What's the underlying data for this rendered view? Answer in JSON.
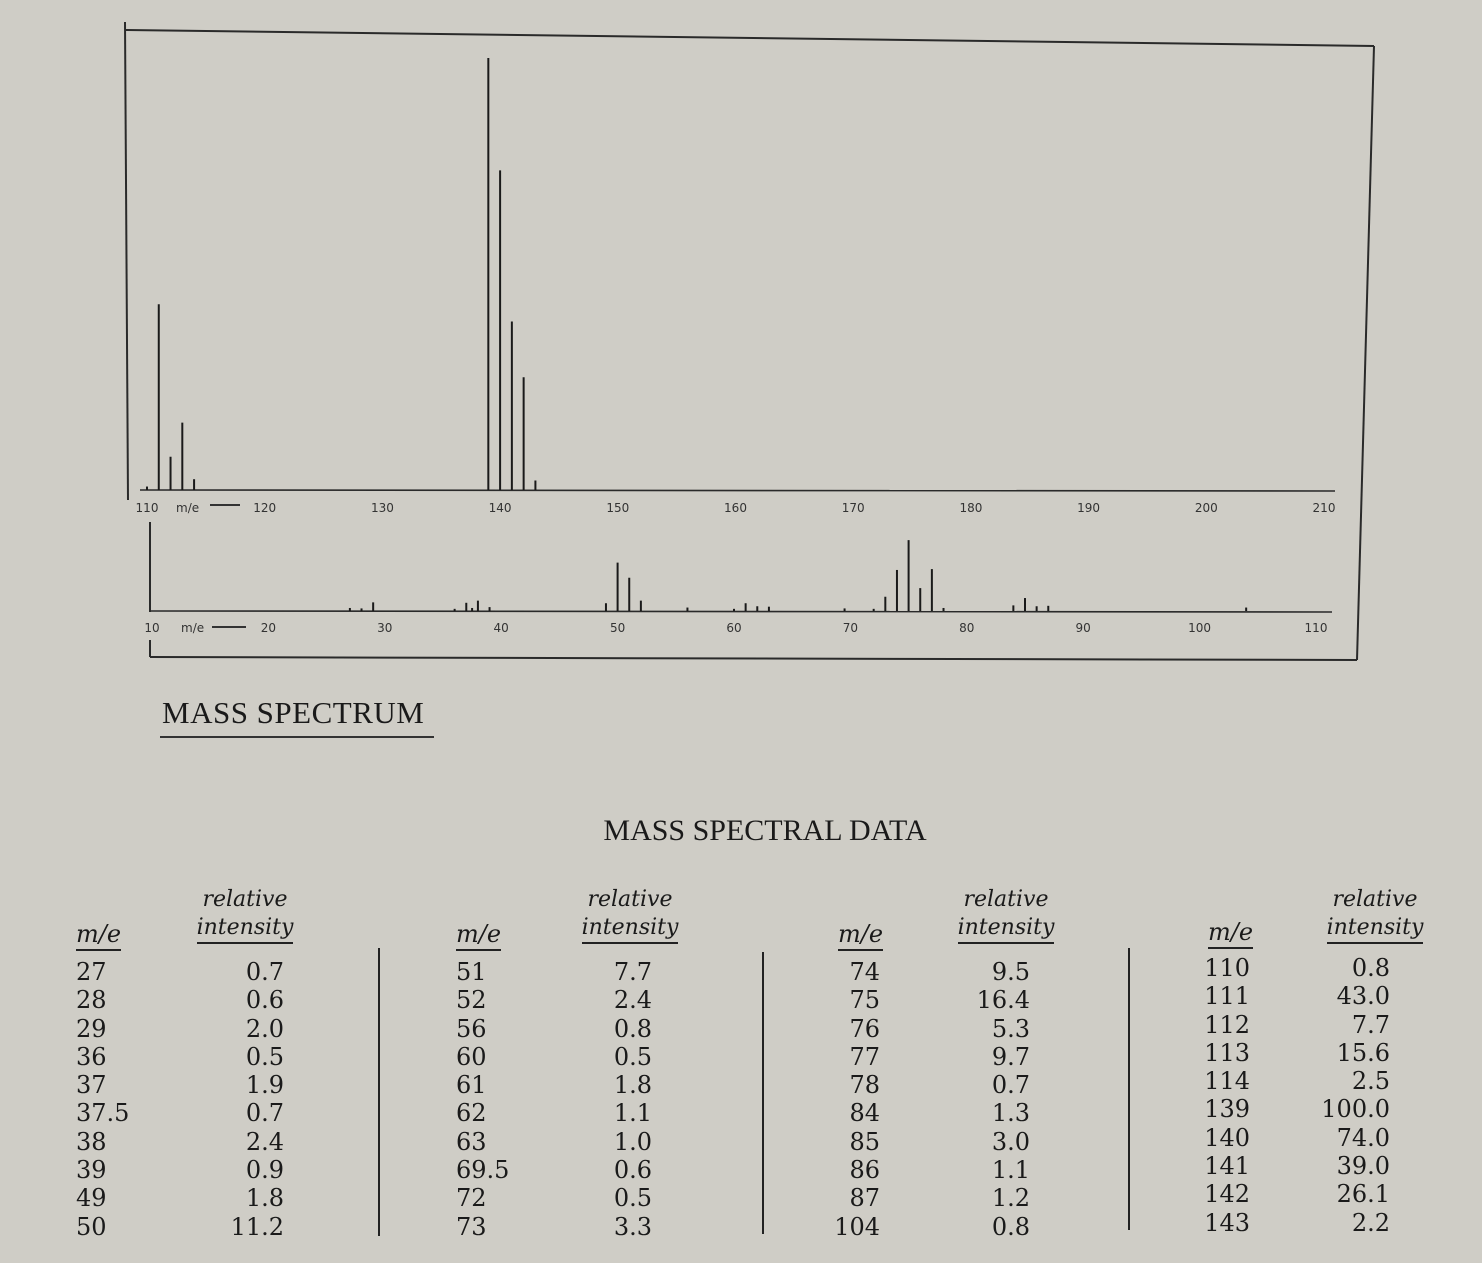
{
  "chart_data": [
    {
      "type": "bar",
      "title": "",
      "xlabel": "m/e",
      "xlim": [
        110,
        210
      ],
      "ticks": [
        "110",
        "120",
        "130",
        "140",
        "150",
        "160",
        "170",
        "180",
        "190",
        "200",
        "210"
      ],
      "tick_values": [
        110,
        120,
        130,
        140,
        150,
        160,
        170,
        180,
        190,
        200,
        210
      ],
      "peaks": [
        {
          "x": 110,
          "y": 0.8
        },
        {
          "x": 111,
          "y": 43.0
        },
        {
          "x": 112,
          "y": 7.7
        },
        {
          "x": 113,
          "y": 15.6
        },
        {
          "x": 114,
          "y": 2.5
        },
        {
          "x": 139,
          "y": 100.0
        },
        {
          "x": 140,
          "y": 74.0
        },
        {
          "x": 141,
          "y": 39.0
        },
        {
          "x": 142,
          "y": 26.1
        },
        {
          "x": 143,
          "y": 2.2
        }
      ]
    },
    {
      "type": "bar",
      "title": "",
      "xlabel": "m/e",
      "xlim": [
        10,
        110
      ],
      "ticks": [
        "10",
        "20",
        "30",
        "40",
        "50",
        "60",
        "70",
        "80",
        "90",
        "100",
        "110"
      ],
      "tick_values": [
        10,
        20,
        30,
        40,
        50,
        60,
        70,
        80,
        90,
        100,
        110
      ],
      "peaks": [
        {
          "x": 27,
          "y": 0.7
        },
        {
          "x": 28,
          "y": 0.6
        },
        {
          "x": 29,
          "y": 2.0
        },
        {
          "x": 36,
          "y": 0.5
        },
        {
          "x": 37,
          "y": 1.9
        },
        {
          "x": 37.5,
          "y": 0.7
        },
        {
          "x": 38,
          "y": 2.4
        },
        {
          "x": 39,
          "y": 0.9
        },
        {
          "x": 49,
          "y": 1.8
        },
        {
          "x": 50,
          "y": 11.2
        },
        {
          "x": 51,
          "y": 7.7
        },
        {
          "x": 52,
          "y": 2.4
        },
        {
          "x": 56,
          "y": 0.8
        },
        {
          "x": 60,
          "y": 0.5
        },
        {
          "x": 61,
          "y": 1.8
        },
        {
          "x": 62,
          "y": 1.1
        },
        {
          "x": 63,
          "y": 1.0
        },
        {
          "x": 69.5,
          "y": 0.6
        },
        {
          "x": 72,
          "y": 0.5
        },
        {
          "x": 73,
          "y": 3.3
        },
        {
          "x": 74,
          "y": 9.5
        },
        {
          "x": 75,
          "y": 16.4
        },
        {
          "x": 76,
          "y": 5.3
        },
        {
          "x": 77,
          "y": 9.7
        },
        {
          "x": 78,
          "y": 0.7
        },
        {
          "x": 84,
          "y": 1.3
        },
        {
          "x": 85,
          "y": 3.0
        },
        {
          "x": 86,
          "y": 1.1
        },
        {
          "x": 87,
          "y": 1.2
        },
        {
          "x": 104,
          "y": 0.8
        }
      ]
    }
  ],
  "spectrum": {
    "title": "MASS SPECTRUM",
    "axis_unit_label": "m/e"
  },
  "table": {
    "title": "MASS SPECTRAL DATA",
    "me_header": "m/e",
    "ri_header_line1": "relative",
    "ri_header_line2": "intensity",
    "columns": [
      {
        "me": [
          "27",
          "28",
          "29",
          "36",
          "37",
          "37.5",
          "38",
          "39",
          "49",
          "50"
        ],
        "ri": [
          "0.7",
          "0.6",
          "2.0",
          "0.5",
          "1.9",
          "0.7",
          "2.4",
          "0.9",
          "1.8",
          "11.2"
        ]
      },
      {
        "me": [
          "51",
          "52",
          "56",
          "60",
          "61",
          "62",
          "63",
          "69.5",
          "72",
          "73"
        ],
        "ri": [
          "7.7",
          "2.4",
          "0.8",
          "0.5",
          "1.8",
          "1.1",
          "1.0",
          "0.6",
          "0.5",
          "3.3"
        ]
      },
      {
        "me": [
          "74",
          "75",
          "76",
          "77",
          "78",
          "84",
          "85",
          "86",
          "87",
          "104"
        ],
        "ri": [
          "9.5",
          "16.4",
          "5.3",
          "9.7",
          "0.7",
          "1.3",
          "3.0",
          "1.1",
          "1.2",
          "0.8"
        ]
      },
      {
        "me": [
          "110",
          "111",
          "112",
          "113",
          "114",
          "139",
          "140",
          "141",
          "142",
          "143"
        ],
        "ri": [
          "0.8",
          "43.0",
          "7.7",
          "15.6",
          "2.5",
          "100.0",
          "74.0",
          "39.0",
          "26.1",
          "2.2"
        ]
      }
    ]
  }
}
